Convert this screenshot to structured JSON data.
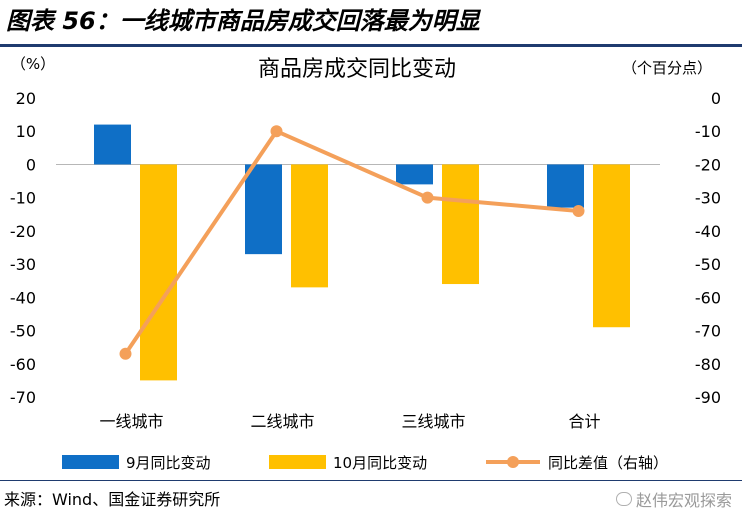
{
  "figure": {
    "title": "图表 56：一线城市商品房成交回落最为明显",
    "source": "来源：Wind、国金证券研究所",
    "watermark": "赵伟宏观探索"
  },
  "chart_data": {
    "type": "bar",
    "title": "商品房成交同比变动",
    "left_unit": "（%）",
    "right_unit": "（个百分点）",
    "categories": [
      "一线城市",
      "二线城市",
      "三线城市",
      "合计"
    ],
    "y_left": {
      "min": -70,
      "max": 20,
      "ticks": [
        20,
        10,
        0,
        -10,
        -20,
        -30,
        -40,
        -50,
        -60,
        -70
      ]
    },
    "y_right": {
      "min": -90,
      "max": 0,
      "ticks": [
        0,
        -10,
        -20,
        -30,
        -40,
        -50,
        -60,
        -70,
        -80,
        -90
      ]
    },
    "series": [
      {
        "name": "9月同比变动",
        "type": "bar",
        "axis": "left",
        "color": "#0f6fc6",
        "values": [
          12,
          -27,
          -6,
          -13
        ]
      },
      {
        "name": "10月同比变动",
        "type": "bar",
        "axis": "left",
        "color": "#ffc000",
        "values": [
          -65,
          -37,
          -36,
          -49
        ]
      },
      {
        "name": "同比差值（右轴）",
        "type": "line",
        "axis": "right",
        "color": "#f4a05a",
        "values": [
          -77,
          -10,
          -30,
          -34
        ]
      }
    ],
    "legend_position": "bottom",
    "grid": false
  }
}
